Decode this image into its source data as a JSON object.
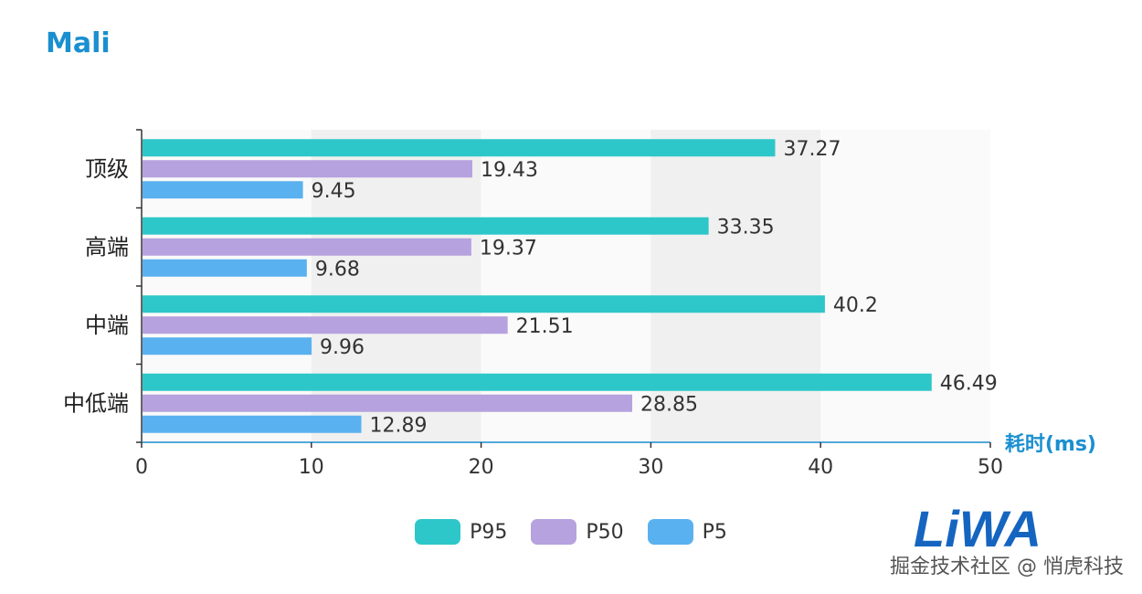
{
  "title": "Mali",
  "watermark": "掘金技术社区 @ 悄虎科技",
  "logo_text": "LiWA",
  "colors": {
    "title": "#1a8fd0",
    "axis_label": "#1a8fd0",
    "band": "#f0f0f0",
    "axis": "#333333",
    "logo": "#1565c0"
  },
  "chart_data": {
    "type": "bar",
    "orientation": "horizontal",
    "categories": [
      "顶级",
      "高端",
      "中端",
      "中低端"
    ],
    "series": [
      {
        "name": "P95",
        "color": "#2ec7c9",
        "values": [
          37.27,
          33.35,
          40.2,
          46.49
        ],
        "labels": [
          "37.27",
          "33.35",
          "40.2",
          "46.49"
        ]
      },
      {
        "name": "P50",
        "color": "#b6a2de",
        "values": [
          19.43,
          19.37,
          21.51,
          28.85
        ],
        "labels": [
          "19.43",
          "19.37",
          "21.51",
          "28.85"
        ]
      },
      {
        "name": "P5",
        "color": "#5ab1ef",
        "values": [
          9.45,
          9.68,
          9.96,
          12.89
        ],
        "labels": [
          "9.45",
          "9.68",
          "9.96",
          "12.89"
        ]
      }
    ],
    "xlabel": "耗时(ms)",
    "xlim": [
      0,
      50
    ],
    "xticks": [
      "0",
      "10",
      "20",
      "30",
      "40",
      "50"
    ],
    "grid": "alternating-bands",
    "legend_position": "bottom"
  }
}
